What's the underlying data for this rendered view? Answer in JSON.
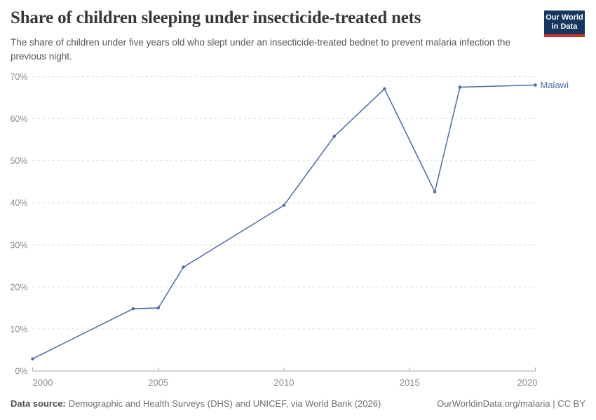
{
  "header": {
    "title": "Share of children sleeping under insecticide-treated nets",
    "subtitle": "The share of children under five years old who slept under an insecticide-treated bednet to prevent malaria infection the previous night.",
    "logo": {
      "line1": "Our World",
      "line2": "in Data",
      "bg_color": "#15365E",
      "accent_color": "#CE342B"
    }
  },
  "footer": {
    "source_label": "Data source:",
    "source_text": "Demographic and Health Surveys (DHS) and UNICEF, via World Bank (2026)",
    "attribution": "OurWorldinData.org/malaria | CC BY"
  },
  "chart_data": {
    "type": "line",
    "title": "Share of children sleeping under insecticide-treated nets",
    "xlabel": "",
    "ylabel": "",
    "xlim": [
      2000,
      2020
    ],
    "ylim": [
      0,
      70
    ],
    "xticks": [
      2000,
      2005,
      2010,
      2015,
      2020
    ],
    "yticks": [
      0,
      10,
      20,
      30,
      40,
      50,
      60,
      70
    ],
    "ytick_suffix": "%",
    "grid": "horizontal-dashed",
    "legend": "end-of-line-label",
    "series": [
      {
        "name": "Malawi",
        "color": "#4D6AA9",
        "points": [
          {
            "year": 2000,
            "value": 2.9
          },
          {
            "year": 2004,
            "value": 14.8
          },
          {
            "year": 2005,
            "value": 15.0
          },
          {
            "year": 2006,
            "value": 24.7
          },
          {
            "year": 2010,
            "value": 39.4
          },
          {
            "year": 2012,
            "value": 55.8
          },
          {
            "year": 2014,
            "value": 67.1
          },
          {
            "year": 2016,
            "value": 42.6
          },
          {
            "year": 2017,
            "value": 67.5
          },
          {
            "year": 2020,
            "value": 68.0
          }
        ]
      }
    ]
  }
}
